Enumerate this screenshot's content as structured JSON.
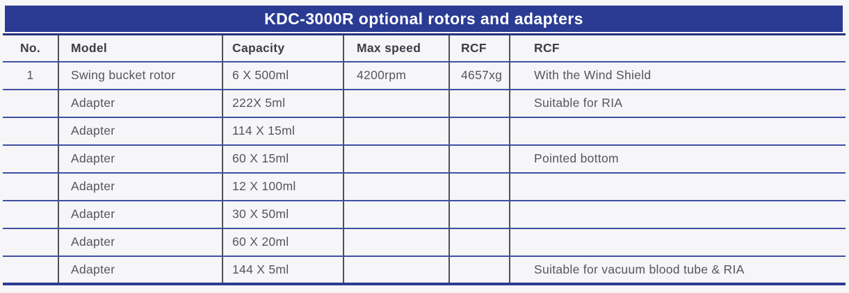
{
  "title": "KDC-3000R optional rotors and adapters",
  "colors": {
    "brand_blue": "#2b3b94",
    "row_rule_blue": "#3d4fa3",
    "top_rule_navy": "#26317c",
    "column_rule_gray": "#4f4f58",
    "background": "#f6f5f7",
    "title_text": "#ffffff",
    "header_text": "#3d3d47",
    "body_text": "#55555e"
  },
  "table": {
    "columns": [
      "No.",
      "Model",
      "Capacity",
      "Max speed",
      "RCF",
      "RCF"
    ],
    "rows": [
      {
        "no": "1",
        "model": "Swing bucket rotor",
        "capacity": "6 X 500ml",
        "max_speed": "4200rpm",
        "rcf": "4657xg",
        "remark": "With the Wind Shield"
      },
      {
        "no": "",
        "model": "Adapter",
        "capacity": "222X 5ml",
        "max_speed": "",
        "rcf": "",
        "remark": "Suitable for RIA"
      },
      {
        "no": "",
        "model": "Adapter",
        "capacity": "114 X 15ml",
        "max_speed": "",
        "rcf": "",
        "remark": ""
      },
      {
        "no": "",
        "model": "Adapter",
        "capacity": "60 X 15ml",
        "max_speed": "",
        "rcf": "",
        "remark": "Pointed bottom"
      },
      {
        "no": "",
        "model": "Adapter",
        "capacity": "12 X 100ml",
        "max_speed": "",
        "rcf": "",
        "remark": ""
      },
      {
        "no": "",
        "model": "Adapter",
        "capacity": "30 X 50ml",
        "max_speed": "",
        "rcf": "",
        "remark": ""
      },
      {
        "no": "",
        "model": "Adapter",
        "capacity": "60 X 20ml",
        "max_speed": "",
        "rcf": "",
        "remark": ""
      },
      {
        "no": "",
        "model": "Adapter",
        "capacity": "144 X 5ml",
        "max_speed": "",
        "rcf": "",
        "remark": "Suitable for vacuum blood tube & RIA"
      }
    ]
  }
}
